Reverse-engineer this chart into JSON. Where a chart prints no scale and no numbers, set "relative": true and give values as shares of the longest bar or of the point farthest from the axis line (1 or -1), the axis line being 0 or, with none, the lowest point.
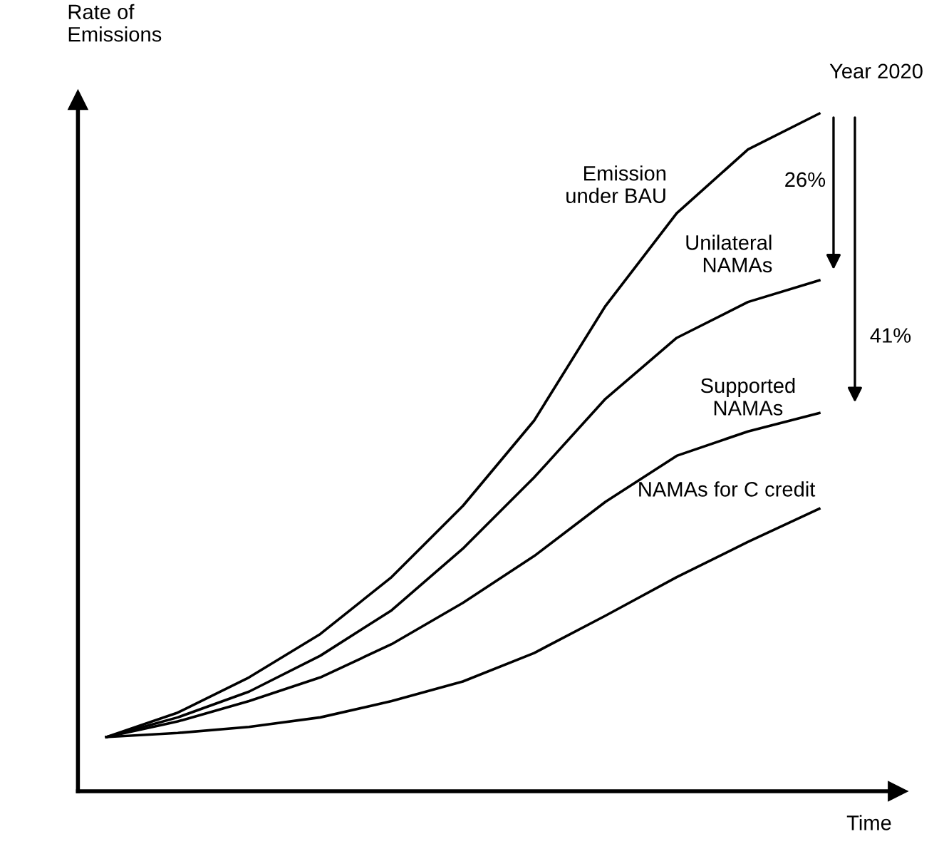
{
  "chart_data": {
    "type": "line",
    "relative": true,
    "xlabel": "Time",
    "ylabel": "Rate of\nEmissions",
    "categories": [
      null,
      null,
      null,
      null,
      null,
      null,
      null,
      null,
      null,
      null,
      null
    ],
    "series": [
      {
        "name": "Emission\nunder BAU",
        "color": "#000000",
        "values": [
          0.08,
          0.116,
          0.168,
          0.232,
          0.316,
          0.421,
          0.547,
          0.716,
          0.853,
          0.947,
          1.0
        ]
      },
      {
        "name": "Unilateral\nNAMAs",
        "color": "#000000",
        "values": [
          0.08,
          0.109,
          0.147,
          0.2,
          0.267,
          0.358,
          0.463,
          0.579,
          0.669,
          0.722,
          0.754
        ]
      },
      {
        "name": "Supported\nNAMAs",
        "color": "#000000",
        "values": [
          0.08,
          0.103,
          0.133,
          0.168,
          0.217,
          0.278,
          0.347,
          0.427,
          0.495,
          0.531,
          0.558
        ]
      },
      {
        "name": "NAMAs for C credit",
        "color": "#000000",
        "values": [
          0.08,
          0.086,
          0.095,
          0.109,
          0.133,
          0.162,
          0.204,
          0.259,
          0.316,
          0.368,
          0.417
        ]
      }
    ],
    "annotations": [
      "Year 2020",
      "26%",
      "41%"
    ],
    "grid": false,
    "legend": false,
    "marker": "none",
    "line_style": "solid"
  }
}
